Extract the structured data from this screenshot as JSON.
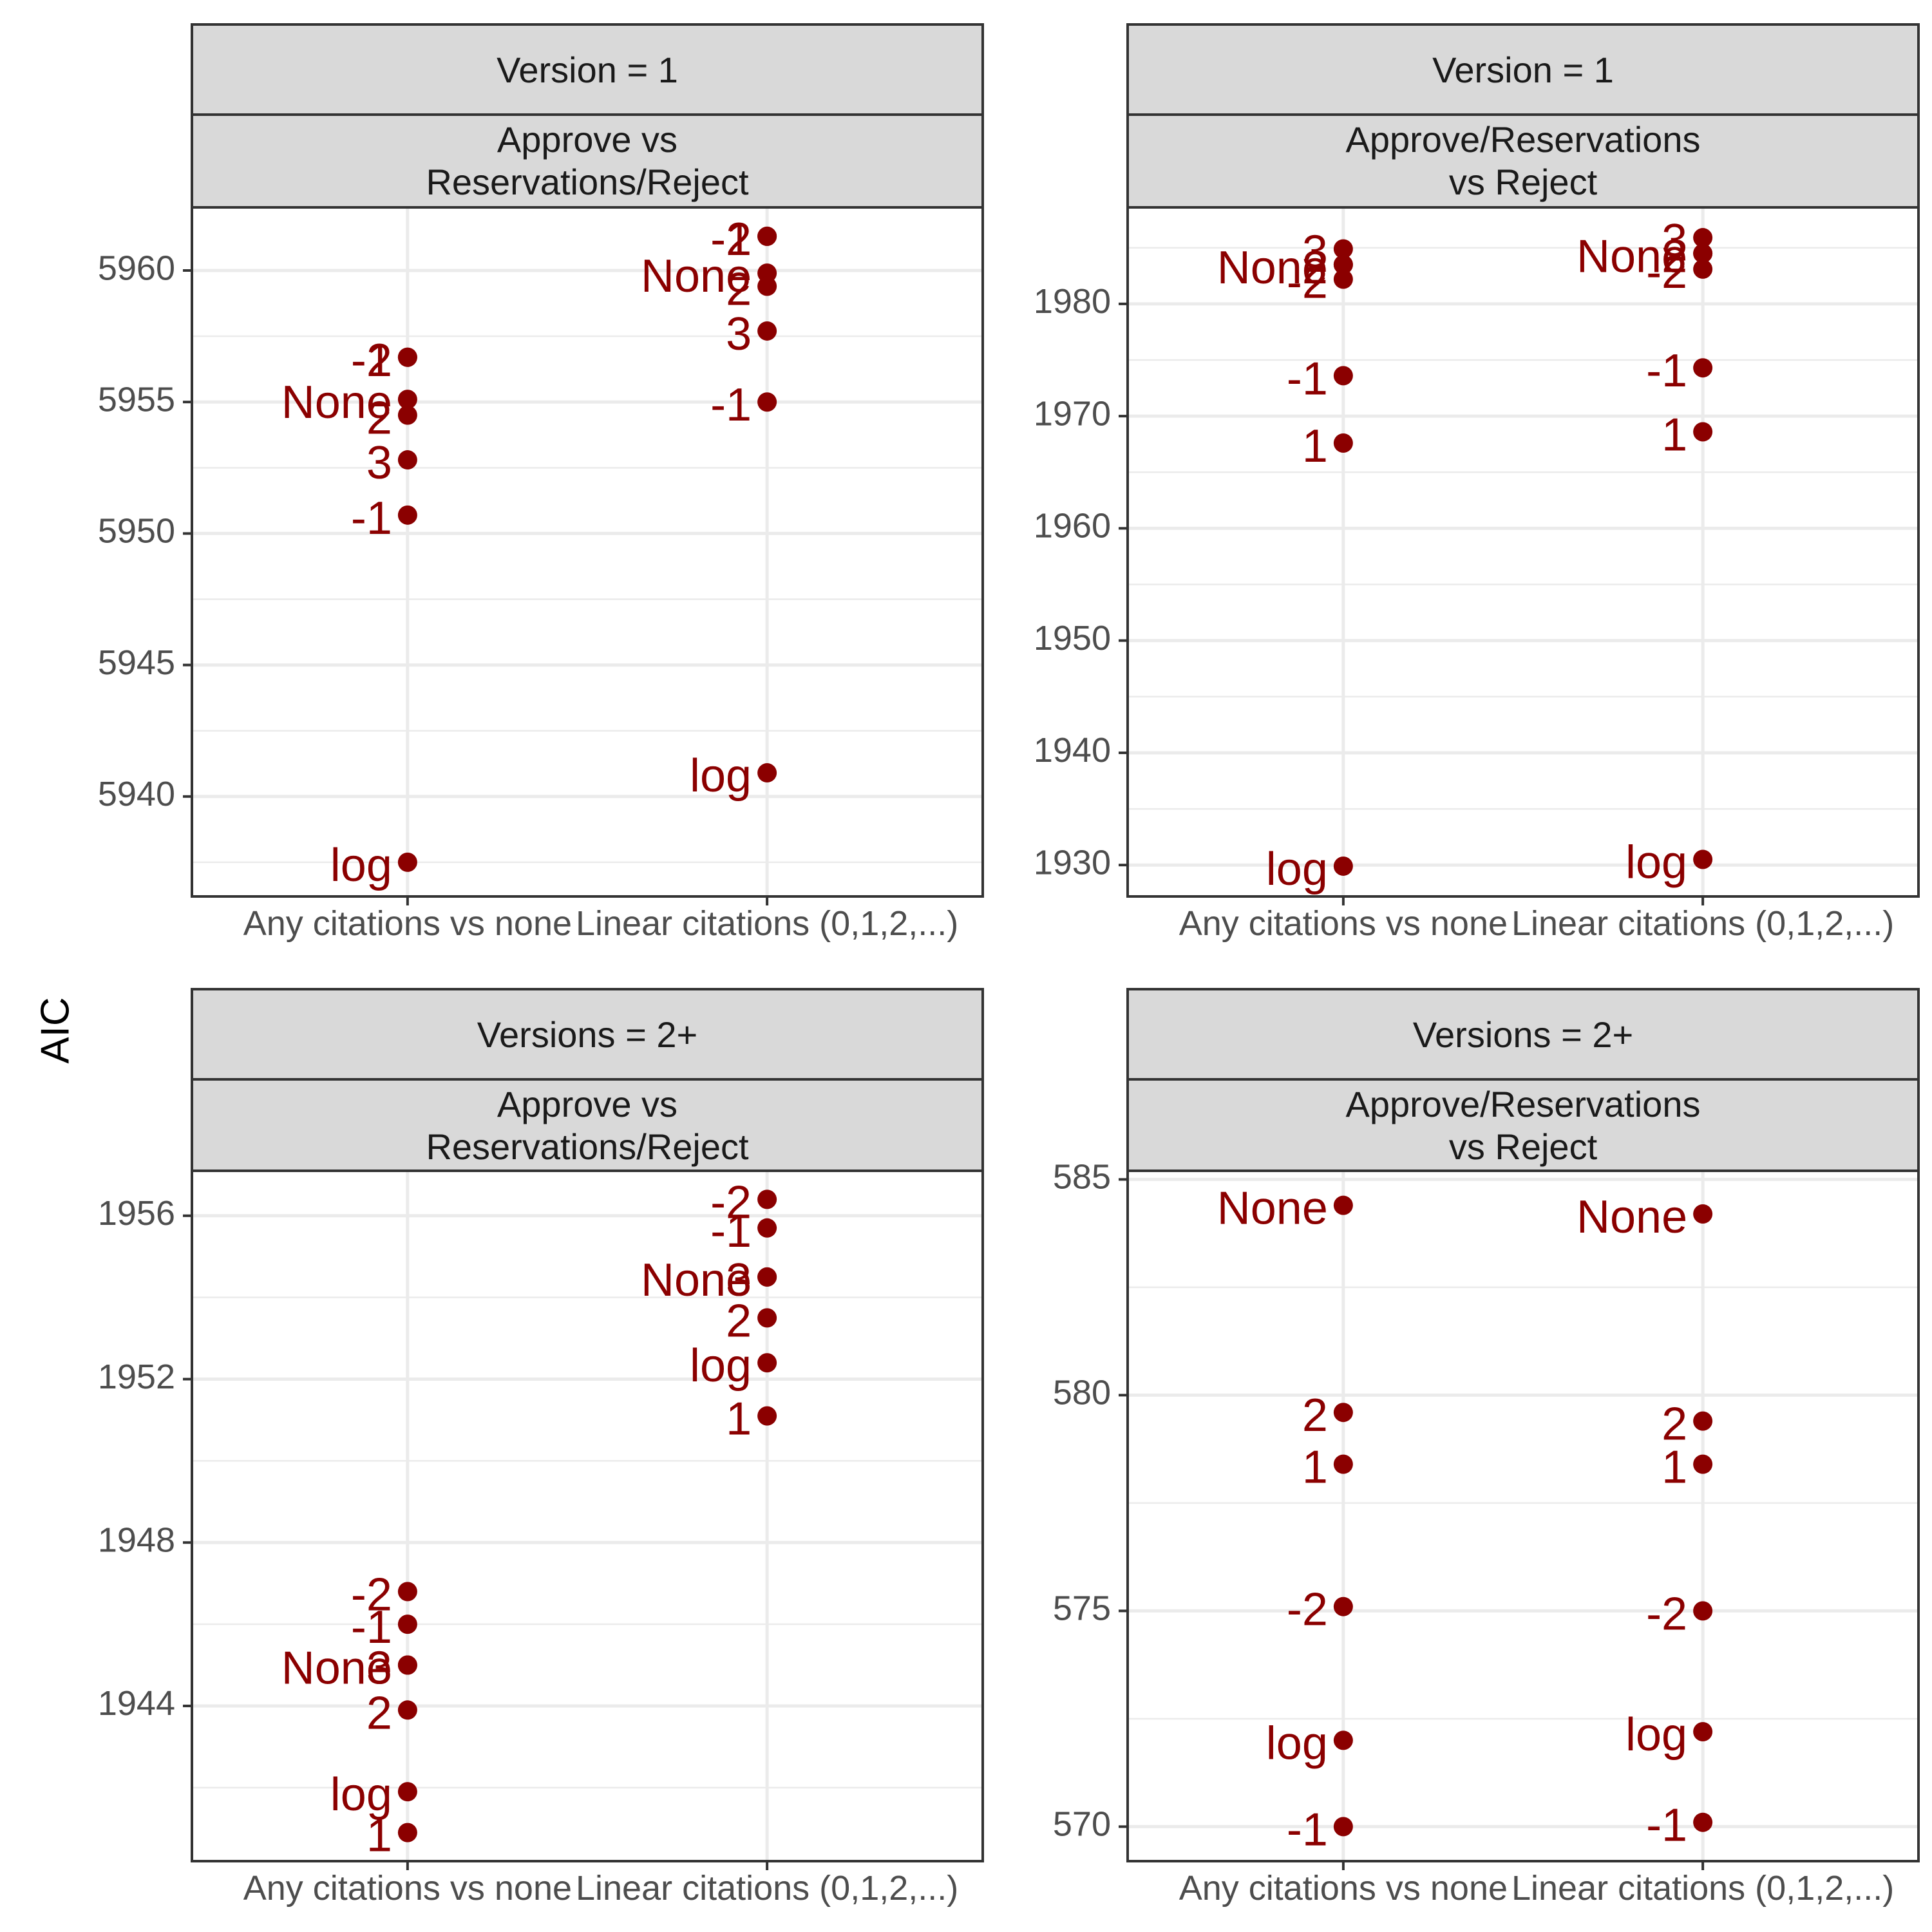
{
  "figure": {
    "y_axis_title": "AIC",
    "point_color": "#8b0000"
  },
  "chart_data": [
    {
      "type": "scatter",
      "facet_row": "Version = 1",
      "facet_col": "Approve vs\nReservations/Reject",
      "categories": [
        "Any citations vs none",
        "Linear citations (0,1,2,...)"
      ],
      "ylim": [
        5936.2,
        5962.4
      ],
      "yticks": [
        5940,
        5945,
        5950,
        5955,
        5960
      ],
      "ytick_labels": [
        "5940",
        "5945",
        "5950",
        "5955",
        "5960"
      ],
      "grid": true,
      "points": [
        {
          "x": "Any citations vs none",
          "y": 5956.7,
          "label": "-2"
        },
        {
          "x": "Any citations vs none",
          "y": 5956.7,
          "label": "1"
        },
        {
          "x": "Any citations vs none",
          "y": 5955.1,
          "label": "None"
        },
        {
          "x": "Any citations vs none",
          "y": 5954.5,
          "label": "2"
        },
        {
          "x": "Any citations vs none",
          "y": 5952.8,
          "label": "3"
        },
        {
          "x": "Any citations vs none",
          "y": 5950.7,
          "label": "-1"
        },
        {
          "x": "Any citations vs none",
          "y": 5937.5,
          "label": "log"
        },
        {
          "x": "Linear citations (0,1,2,...)",
          "y": 5961.3,
          "label": "-2"
        },
        {
          "x": "Linear citations (0,1,2,...)",
          "y": 5961.3,
          "label": "1"
        },
        {
          "x": "Linear citations (0,1,2,...)",
          "y": 5959.9,
          "label": "None"
        },
        {
          "x": "Linear citations (0,1,2,...)",
          "y": 5959.4,
          "label": "2"
        },
        {
          "x": "Linear citations (0,1,2,...)",
          "y": 5957.7,
          "label": "3"
        },
        {
          "x": "Linear citations (0,1,2,...)",
          "y": 5955.0,
          "label": "-1"
        },
        {
          "x": "Linear citations (0,1,2,...)",
          "y": 5940.9,
          "label": "log"
        }
      ]
    },
    {
      "type": "scatter",
      "facet_row": "Version = 1",
      "facet_col": "Approve/Reservations\nvs Reject",
      "categories": [
        "Any citations vs none",
        "Linear citations (0,1,2,...)"
      ],
      "ylim": [
        1927.2,
        1988.6
      ],
      "yticks": [
        1930,
        1940,
        1950,
        1960,
        1970,
        1980
      ],
      "ytick_labels": [
        "1930",
        "1940",
        "1950",
        "1960",
        "1970",
        "1980"
      ],
      "grid": true,
      "points": [
        {
          "x": "Any citations vs none",
          "y": 1984.9,
          "label": "3"
        },
        {
          "x": "Any citations vs none",
          "y": 1983.5,
          "label": "None"
        },
        {
          "x": "Any citations vs none",
          "y": 1983.5,
          "label": "2"
        },
        {
          "x": "Any citations vs none",
          "y": 1982.2,
          "label": "-2"
        },
        {
          "x": "Any citations vs none",
          "y": 1973.6,
          "label": "-1"
        },
        {
          "x": "Any citations vs none",
          "y": 1967.6,
          "label": "1"
        },
        {
          "x": "Any citations vs none",
          "y": 1929.9,
          "label": "log"
        },
        {
          "x": "Linear citations (0,1,2,...)",
          "y": 1985.9,
          "label": "3"
        },
        {
          "x": "Linear citations (0,1,2,...)",
          "y": 1984.5,
          "label": "None"
        },
        {
          "x": "Linear citations (0,1,2,...)",
          "y": 1984.5,
          "label": "2"
        },
        {
          "x": "Linear citations (0,1,2,...)",
          "y": 1983.1,
          "label": "-2"
        },
        {
          "x": "Linear citations (0,1,2,...)",
          "y": 1974.3,
          "label": "-1"
        },
        {
          "x": "Linear citations (0,1,2,...)",
          "y": 1968.6,
          "label": "1"
        },
        {
          "x": "Linear citations (0,1,2,...)",
          "y": 1930.5,
          "label": "log"
        }
      ]
    },
    {
      "type": "scatter",
      "facet_row": "Versions = 2+",
      "facet_col": "Approve vs\nReservations/Reject",
      "categories": [
        "Any citations vs none",
        "Linear citations (0,1,2,...)"
      ],
      "ylim": [
        1940.2,
        1957.1
      ],
      "yticks": [
        1944,
        1948,
        1952,
        1956
      ],
      "ytick_labels": [
        "1944",
        "1948",
        "1952",
        "1956"
      ],
      "grid": true,
      "points": [
        {
          "x": "Any citations vs none",
          "y": 1946.8,
          "label": "-2"
        },
        {
          "x": "Any citations vs none",
          "y": 1946.0,
          "label": "-1"
        },
        {
          "x": "Any citations vs none",
          "y": 1945.0,
          "label": "3"
        },
        {
          "x": "Any citations vs none",
          "y": 1945.0,
          "label": "None"
        },
        {
          "x": "Any citations vs none",
          "y": 1943.9,
          "label": "2"
        },
        {
          "x": "Any citations vs none",
          "y": 1941.9,
          "label": "log"
        },
        {
          "x": "Any citations vs none",
          "y": 1940.9,
          "label": "1"
        },
        {
          "x": "Linear citations (0,1,2,...)",
          "y": 1956.4,
          "label": "-2"
        },
        {
          "x": "Linear citations (0,1,2,...)",
          "y": 1955.7,
          "label": "-1"
        },
        {
          "x": "Linear citations (0,1,2,...)",
          "y": 1954.5,
          "label": "3"
        },
        {
          "x": "Linear citations (0,1,2,...)",
          "y": 1954.5,
          "label": "None"
        },
        {
          "x": "Linear citations (0,1,2,...)",
          "y": 1953.5,
          "label": "2"
        },
        {
          "x": "Linear citations (0,1,2,...)",
          "y": 1952.4,
          "label": "log"
        },
        {
          "x": "Linear citations (0,1,2,...)",
          "y": 1951.1,
          "label": "1"
        }
      ]
    },
    {
      "type": "scatter",
      "facet_row": "Versions = 2+",
      "facet_col": "Approve/Reservations\nvs Reject",
      "categories": [
        "Any citations vs none",
        "Linear citations (0,1,2,...)"
      ],
      "ylim": [
        569.2,
        585.2
      ],
      "yticks": [
        570,
        575,
        580,
        585
      ],
      "ytick_labels": [
        "570",
        "575",
        "580",
        "585"
      ],
      "grid": true,
      "points": [
        {
          "x": "Any citations vs none",
          "y": 584.4,
          "label": "None"
        },
        {
          "x": "Any citations vs none",
          "y": 579.6,
          "label": "2"
        },
        {
          "x": "Any citations vs none",
          "y": 578.4,
          "label": "1"
        },
        {
          "x": "Any citations vs none",
          "y": 575.1,
          "label": "-2"
        },
        {
          "x": "Any citations vs none",
          "y": 572.0,
          "label": "log"
        },
        {
          "x": "Any citations vs none",
          "y": 570.0,
          "label": "-1"
        },
        {
          "x": "Linear citations (0,1,2,...)",
          "y": 584.2,
          "label": "None"
        },
        {
          "x": "Linear citations (0,1,2,...)",
          "y": 579.4,
          "label": "2"
        },
        {
          "x": "Linear citations (0,1,2,...)",
          "y": 578.4,
          "label": "1"
        },
        {
          "x": "Linear citations (0,1,2,...)",
          "y": 575.0,
          "label": "-2"
        },
        {
          "x": "Linear citations (0,1,2,...)",
          "y": 572.2,
          "label": "log"
        },
        {
          "x": "Linear citations (0,1,2,...)",
          "y": 570.1,
          "label": "-1"
        }
      ]
    }
  ]
}
